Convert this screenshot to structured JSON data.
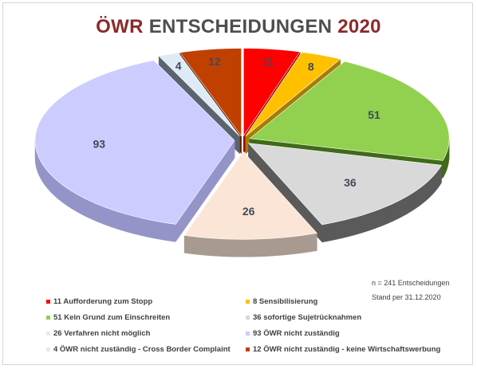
{
  "title": {
    "part1": "ÖWR",
    "part2": "ENTSCHEIDUNGEN",
    "part3": "2020"
  },
  "notes": {
    "n": "n = 241 Entscheidungen",
    "stand": "Stand per 31.12.2020"
  },
  "chart_data": {
    "type": "pie",
    "variant": "3d-exploded",
    "total": 241,
    "slices": [
      {
        "value": 11,
        "label": "11",
        "legend": "11 Aufforderung zum Stopp",
        "color": "#ff0000",
        "side": "#a30000"
      },
      {
        "value": 8,
        "label": "8",
        "legend": "8 Sensibilisierung",
        "color": "#ffc000",
        "side": "#a67d00"
      },
      {
        "value": 51,
        "label": "51",
        "legend": "51 Kein Grund zum Einschreiten",
        "color": "#92d050",
        "side": "#3f6b18"
      },
      {
        "value": 36,
        "label": "36",
        "legend": "36 sofortige Sujetrücknahmen",
        "color": "#d9d9d9",
        "side": "#5a5a5a"
      },
      {
        "value": 26,
        "label": "26",
        "legend": "26 Verfahren nicht möglich",
        "color": "#fbe5d6",
        "side": "#a89a90"
      },
      {
        "value": 93,
        "label": "93",
        "legend": "93 ÖWR nicht zuständig",
        "color": "#ccccff",
        "side": "#9494c8"
      },
      {
        "value": 4,
        "label": "4",
        "legend": "4 ÖWR nicht zuständig - Cross Border Complaint",
        "color": "#deebf7",
        "side": "#5a6470"
      },
      {
        "value": 12,
        "label": "12",
        "legend": "12 ÖWR nicht zuständig - keine Wirtschaftswerbung",
        "color": "#c04000",
        "side": "#5e1f00"
      }
    ],
    "legend_placement": "bottom"
  }
}
